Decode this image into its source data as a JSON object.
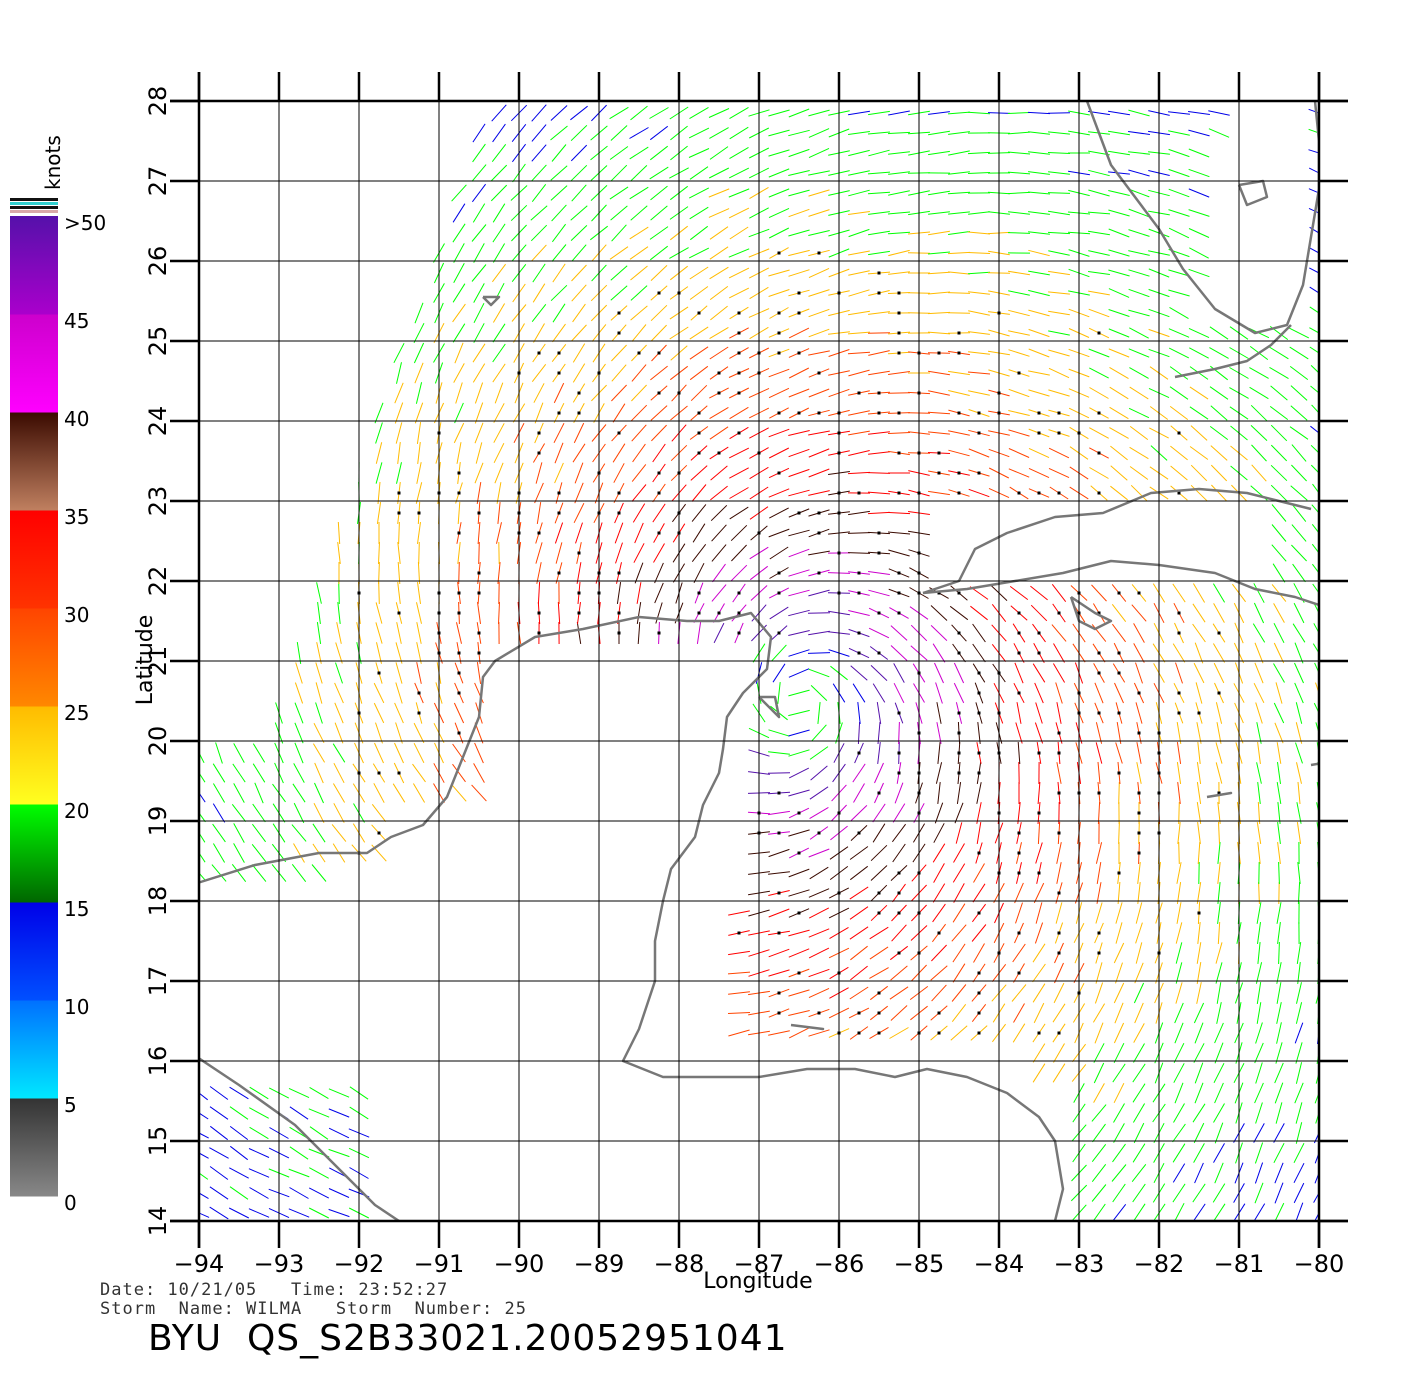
{
  "map": {
    "lon_range": [
      -94,
      -80
    ],
    "lat_range": [
      14,
      28
    ],
    "lon_ticks": [
      "−94",
      "−93",
      "−92",
      "−91",
      "−90",
      "−89",
      "−88",
      "−87",
      "−86",
      "−85",
      "−84",
      "−83",
      "−82",
      "−81",
      "−80"
    ],
    "lat_ticks": [
      "14",
      "15",
      "16",
      "17",
      "18",
      "19",
      "20",
      "21",
      "22",
      "23",
      "24",
      "25",
      "26",
      "27",
      "28"
    ],
    "xlabel": "Longitude",
    "ylabel": "Latitude",
    "grid": true,
    "land_color": "#ffffff",
    "coast_color": "#777777",
    "storm_center": {
      "lon": -86.5,
      "lat": 20.5
    }
  },
  "legend": {
    "unit": "knots",
    "labels": [
      ">50",
      "45",
      "40",
      "35",
      "30",
      "25",
      "20",
      "15",
      "10",
      "5",
      "0"
    ],
    "bands": [
      {
        "from": 0,
        "to": 5,
        "colors": [
          "#888888",
          "#333333"
        ]
      },
      {
        "from": 5,
        "to": 10,
        "colors": [
          "#00e8ff",
          "#0070ff"
        ]
      },
      {
        "from": 10,
        "to": 15,
        "colors": [
          "#0050ff",
          "#0000e8"
        ]
      },
      {
        "from": 15,
        "to": 20,
        "colors": [
          "#006600",
          "#00ff00"
        ]
      },
      {
        "from": 20,
        "to": 25,
        "colors": [
          "#ffff20",
          "#ffbb00"
        ]
      },
      {
        "from": 25,
        "to": 30,
        "colors": [
          "#ff8800",
          "#ff4400"
        ]
      },
      {
        "from": 30,
        "to": 35,
        "colors": [
          "#ff3300",
          "#ff0000"
        ]
      },
      {
        "from": 35,
        "to": 40,
        "colors": [
          "#c08060",
          "#3a0a00"
        ]
      },
      {
        "from": 40,
        "to": 45,
        "colors": [
          "#ff00ff",
          "#cc00cc"
        ]
      },
      {
        "from": 45,
        "to": 50,
        "colors": [
          "#aa00cc",
          "#5511aa"
        ]
      }
    ]
  },
  "info": {
    "line1": "Date: 10/21/05   Time: 23:52:27",
    "line2": "Storm  Name: WILMA   Storm  Number: 25",
    "product": "BYU  QS_S2B33021.20052951041"
  }
}
